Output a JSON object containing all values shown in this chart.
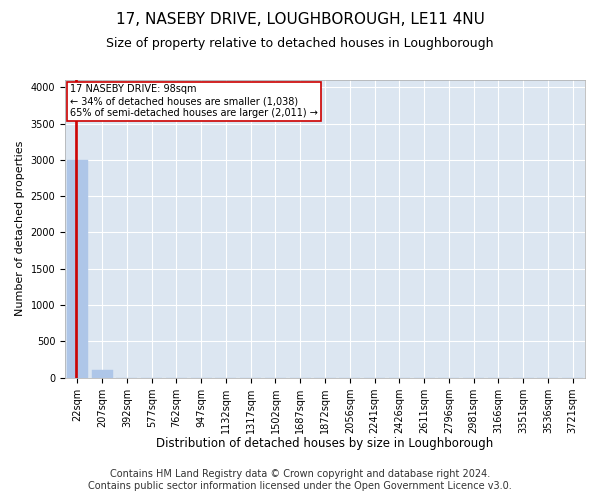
{
  "title": "17, NASEBY DRIVE, LOUGHBOROUGH, LE11 4NU",
  "subtitle": "Size of property relative to detached houses in Loughborough",
  "xlabel": "Distribution of detached houses by size in Loughborough",
  "ylabel": "Number of detached properties",
  "footer_line1": "Contains HM Land Registry data © Crown copyright and database right 2024.",
  "footer_line2": "Contains public sector information licensed under the Open Government Licence v3.0.",
  "categories": [
    "22sqm",
    "207sqm",
    "392sqm",
    "577sqm",
    "762sqm",
    "947sqm",
    "1132sqm",
    "1317sqm",
    "1502sqm",
    "1687sqm",
    "1872sqm",
    "2056sqm",
    "2241sqm",
    "2426sqm",
    "2611sqm",
    "2796sqm",
    "2981sqm",
    "3166sqm",
    "3351sqm",
    "3536sqm",
    "3721sqm"
  ],
  "values": [
    3000,
    110,
    0,
    0,
    0,
    0,
    0,
    0,
    0,
    0,
    0,
    0,
    0,
    0,
    0,
    0,
    0,
    0,
    0,
    0,
    0
  ],
  "bar_color": "#aec6e8",
  "bar_edge_color": "#aec6e8",
  "annotation_line1": "17 NASEBY DRIVE: 98sqm",
  "annotation_line2": "← 34% of detached houses are smaller (1,038)",
  "annotation_line3": "65% of semi-detached houses are larger (2,011) →",
  "annotation_box_color": "#ffffff",
  "annotation_box_edge_color": "#cc0000",
  "ylim": [
    0,
    4100
  ],
  "yticks": [
    0,
    500,
    1000,
    1500,
    2000,
    2500,
    3000,
    3500,
    4000
  ],
  "fig_bg_color": "#ffffff",
  "plot_bg_color": "#dce6f1",
  "grid_color": "#ffffff",
  "title_fontsize": 11,
  "subtitle_fontsize": 9,
  "xlabel_fontsize": 8.5,
  "ylabel_fontsize": 8,
  "tick_fontsize": 7,
  "footer_fontsize": 7,
  "property_line_color": "#cc0000"
}
